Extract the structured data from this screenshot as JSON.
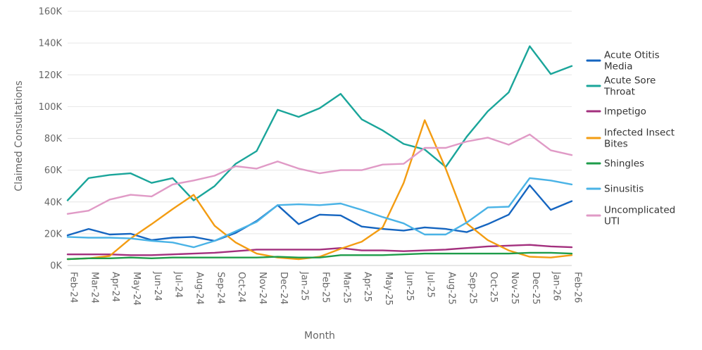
{
  "chart_data": {
    "type": "line",
    "title": "",
    "xlabel": "Month",
    "ylabel": "Claimed Consultations",
    "ylim": [
      0,
      160000
    ],
    "yticks": [
      0,
      20000,
      40000,
      60000,
      80000,
      100000,
      120000,
      140000,
      160000
    ],
    "ytick_labels": [
      "0K",
      "20K",
      "40K",
      "60K",
      "80K",
      "100K",
      "120K",
      "140K",
      "160K"
    ],
    "grid": "horizontal",
    "legend_position": "right",
    "categories": [
      "Feb-24",
      "Mar-24",
      "Apr-24",
      "May-24",
      "Jun-24",
      "Jul-24",
      "Aug-24",
      "Sep-24",
      "Oct-24",
      "Nov-24",
      "Dec-24",
      "Jan-25",
      "Feb-25",
      "Mar-25",
      "Apr-25",
      "May-25",
      "Jun-25",
      "Jul-25",
      "Aug-25",
      "Sep-25",
      "Oct-25",
      "Nov-25",
      "Dec-25",
      "Jan-26",
      "Feb-26"
    ],
    "series": [
      {
        "name": "Acute Otitis Media",
        "color": "#1565c0",
        "values": [
          19000,
          23000,
          19500,
          20000,
          16000,
          17500,
          18000,
          15500,
          20500,
          28000,
          38000,
          26000,
          32000,
          31500,
          24500,
          23000,
          22000,
          24000,
          23000,
          21000,
          26000,
          32000,
          50500,
          35000,
          40500
        ]
      },
      {
        "name": "Acute Sore Throat",
        "color": "#1aa59a",
        "values": [
          41000,
          55000,
          57000,
          58000,
          52000,
          55000,
          41000,
          50000,
          64000,
          72000,
          98000,
          93500,
          99000,
          108000,
          92000,
          85000,
          76500,
          73000,
          62000,
          81000,
          97000,
          109000,
          138000,
          120500,
          125500
        ]
      },
      {
        "name": "Impetigo",
        "color": "#a3307e",
        "values": [
          7000,
          7000,
          7000,
          6500,
          6500,
          7000,
          7500,
          8000,
          9000,
          10000,
          10000,
          10000,
          10000,
          11000,
          9500,
          9500,
          9000,
          9500,
          10000,
          11000,
          12000,
          12500,
          13000,
          12000,
          11500
        ]
      },
      {
        "name": "Infected Insect Bites",
        "color": "#f39c12",
        "values": [
          4000,
          4500,
          6000,
          17000,
          26000,
          35500,
          44500,
          25000,
          14500,
          7500,
          5000,
          4000,
          5500,
          10500,
          15000,
          24000,
          52000,
          91500,
          61000,
          26500,
          16000,
          9500,
          5500,
          5000,
          6500
        ]
      },
      {
        "name": "Shingles",
        "color": "#1e9c4a",
        "values": [
          4000,
          4500,
          4500,
          5000,
          4500,
          5000,
          5000,
          5000,
          5000,
          5000,
          5500,
          5000,
          5000,
          6500,
          6500,
          6500,
          7000,
          7500,
          7500,
          7500,
          7500,
          7500,
          8000,
          8000,
          7500
        ]
      },
      {
        "name": "Sinusitis",
        "color": "#4ab3e6",
        "values": [
          18000,
          17500,
          17500,
          17000,
          15500,
          14500,
          11500,
          15500,
          21500,
          27500,
          38000,
          38500,
          38000,
          39000,
          35000,
          30500,
          26500,
          19500,
          19500,
          27000,
          36500,
          37000,
          55000,
          53500,
          51000
        ]
      },
      {
        "name": "Uncomplicated UTI",
        "color": "#e09ac6",
        "values": [
          32500,
          34500,
          41500,
          44500,
          43500,
          51000,
          53500,
          56500,
          62500,
          61000,
          65500,
          61000,
          58000,
          60000,
          60000,
          63500,
          64000,
          74000,
          74000,
          78000,
          80500,
          76000,
          82500,
          72500,
          69500
        ]
      }
    ]
  }
}
